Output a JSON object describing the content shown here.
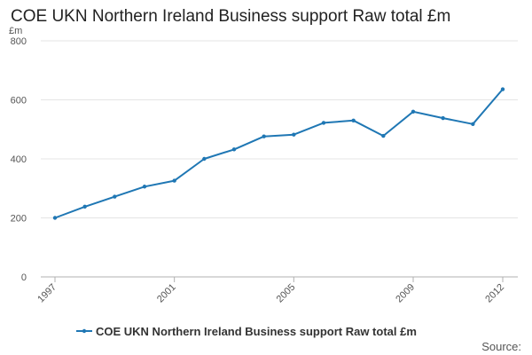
{
  "title": "COE UKN Northern Ireland Business support Raw total £m",
  "source_label": "Source:",
  "chart_data": {
    "type": "line",
    "title": "COE UKN Northern Ireland Business support Raw total £m",
    "ylabel": "£m",
    "xlabel": "",
    "ylim": [
      0,
      800
    ],
    "yticks": [
      0,
      200,
      400,
      600,
      800
    ],
    "xticks": [
      1997,
      2001,
      2005,
      2009,
      2012
    ],
    "grid": true,
    "legend_position": "bottom",
    "x": [
      1997,
      1998,
      1999,
      2000,
      2001,
      2002,
      2003,
      2004,
      2005,
      2006,
      2007,
      2008,
      2009,
      2010,
      2011,
      2012
    ],
    "series": [
      {
        "name": "COE UKN Northern Ireland Business support Raw total £m",
        "color": "#1f77b4",
        "values": [
          200,
          238,
          272,
          306,
          326,
          400,
          432,
          476,
          482,
          522,
          530,
          478,
          560,
          538,
          518,
          636
        ]
      }
    ]
  }
}
